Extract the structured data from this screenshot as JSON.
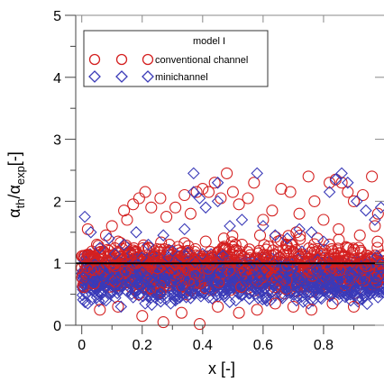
{
  "chart_data": {
    "type": "scatter",
    "title": "",
    "xlabel": "x [-]",
    "ylabel_parts": [
      "α",
      "th",
      "/α",
      "exp",
      "[-]"
    ],
    "xlim": [
      -0.02,
      1.0
    ],
    "ylim": [
      0,
      5
    ],
    "x_ticks": [
      "0",
      "0.2",
      "0.4",
      "0.6",
      "0.8"
    ],
    "x_tick_values": [
      0,
      0.2,
      0.4,
      0.6,
      0.8
    ],
    "y_ticks": [
      "0",
      "1",
      "2",
      "3",
      "4",
      "5"
    ],
    "y_tick_values": [
      0,
      1,
      2,
      3,
      4,
      5
    ],
    "reference_line": 1,
    "legend": {
      "title": "model I",
      "placement": "top-left",
      "entries": [
        {
          "label": "conventional channel",
          "marker": "circle",
          "color": "#d42020"
        },
        {
          "label": "minichannel",
          "marker": "diamond",
          "color": "#3a3ab8"
        }
      ]
    },
    "series": [
      {
        "name": "conventional channel",
        "marker": "circle",
        "color": "#d42020",
        "points": [
          [
            0.02,
            1.55
          ],
          [
            0.05,
            1.3
          ],
          [
            0.08,
            1.45
          ],
          [
            0.1,
            1.6
          ],
          [
            0.12,
            1.35
          ],
          [
            0.14,
            1.85
          ],
          [
            0.15,
            1.7
          ],
          [
            0.17,
            1.95
          ],
          [
            0.19,
            2.05
          ],
          [
            0.21,
            2.15
          ],
          [
            0.23,
            1.9
          ],
          [
            0.26,
            2.05
          ],
          [
            0.28,
            1.75
          ],
          [
            0.31,
            1.9
          ],
          [
            0.34,
            2.1
          ],
          [
            0.36,
            1.8
          ],
          [
            0.38,
            2.15
          ],
          [
            0.4,
            2.2
          ],
          [
            0.42,
            2.15
          ],
          [
            0.44,
            2.3
          ],
          [
            0.46,
            2.05
          ],
          [
            0.48,
            2.45
          ],
          [
            0.5,
            2.15
          ],
          [
            0.52,
            1.95
          ],
          [
            0.55,
            2.05
          ],
          [
            0.57,
            2.3
          ],
          [
            0.6,
            1.7
          ],
          [
            0.63,
            1.85
          ],
          [
            0.66,
            2.2
          ],
          [
            0.69,
            2.15
          ],
          [
            0.72,
            1.8
          ],
          [
            0.75,
            2.4
          ],
          [
            0.77,
            2.0
          ],
          [
            0.8,
            1.7
          ],
          [
            0.82,
            2.3
          ],
          [
            0.84,
            2.35
          ],
          [
            0.86,
            2.3
          ],
          [
            0.88,
            2.15
          ],
          [
            0.9,
            2.0
          ],
          [
            0.93,
            2.1
          ],
          [
            0.96,
            2.4
          ],
          [
            0.98,
            1.8
          ],
          [
            0.06,
            0.25
          ],
          [
            0.12,
            0.3
          ],
          [
            0.2,
            0.15
          ],
          [
            0.27,
            0.05
          ],
          [
            0.33,
            0.2
          ],
          [
            0.39,
            0.02
          ],
          [
            0.45,
            0.3
          ],
          [
            0.52,
            0.2
          ],
          [
            0.58,
            0.25
          ],
          [
            0.64,
            0.35
          ],
          [
            0.7,
            0.3
          ],
          [
            0.76,
            0.25
          ],
          [
            0.83,
            0.35
          ],
          [
            0.9,
            0.3
          ],
          [
            0.04,
            1.1
          ],
          [
            0.09,
            1.2
          ],
          [
            0.16,
            1.15
          ],
          [
            0.22,
            1.25
          ],
          [
            0.29,
            1.3
          ],
          [
            0.35,
            1.2
          ],
          [
            0.41,
            1.35
          ],
          [
            0.47,
            1.4
          ],
          [
            0.53,
            1.3
          ],
          [
            0.59,
            1.45
          ],
          [
            0.65,
            1.35
          ],
          [
            0.71,
            1.5
          ],
          [
            0.78,
            1.4
          ],
          [
            0.85,
            1.55
          ],
          [
            0.92,
            1.45
          ],
          [
            0.97,
            1.6
          ],
          [
            0.03,
            0.9
          ],
          [
            0.11,
            0.95
          ],
          [
            0.18,
            1.0
          ],
          [
            0.25,
            0.92
          ],
          [
            0.32,
            1.05
          ],
          [
            0.37,
            1.0
          ],
          [
            0.43,
            0.98
          ],
          [
            0.49,
            1.02
          ],
          [
            0.56,
            0.97
          ],
          [
            0.62,
            1.05
          ],
          [
            0.68,
            0.96
          ],
          [
            0.74,
            1.03
          ],
          [
            0.81,
            0.99
          ],
          [
            0.87,
            1.04
          ],
          [
            0.94,
            0.95
          ],
          [
            0.99,
            1.0
          ]
        ]
      },
      {
        "name": "minichannel",
        "marker": "diamond",
        "color": "#3a3ab8",
        "points": [
          [
            0.01,
            1.75
          ],
          [
            0.03,
            1.5
          ],
          [
            0.06,
            1.25
          ],
          [
            0.09,
            1.4
          ],
          [
            0.11,
            1.15
          ],
          [
            0.14,
            1.3
          ],
          [
            0.18,
            1.5
          ],
          [
            0.22,
            1.3
          ],
          [
            0.27,
            1.45
          ],
          [
            0.3,
            1.2
          ],
          [
            0.34,
            1.55
          ],
          [
            0.37,
            2.15
          ],
          [
            0.39,
            2.05
          ],
          [
            0.41,
            1.9
          ],
          [
            0.45,
            2.0
          ],
          [
            0.49,
            1.6
          ],
          [
            0.53,
            1.7
          ],
          [
            0.58,
            2.45
          ],
          [
            0.6,
            1.6
          ],
          [
            0.64,
            1.45
          ],
          [
            0.68,
            1.4
          ],
          [
            0.72,
            1.55
          ],
          [
            0.76,
            1.5
          ],
          [
            0.8,
            1.35
          ],
          [
            0.82,
            2.15
          ],
          [
            0.84,
            2.35
          ],
          [
            0.86,
            2.45
          ],
          [
            0.88,
            2.3
          ],
          [
            0.91,
            2.0
          ],
          [
            0.94,
            1.85
          ],
          [
            0.97,
            1.7
          ],
          [
            0.99,
            1.9
          ],
          [
            0.37,
            2.45
          ],
          [
            0.45,
            2.3
          ],
          [
            0.02,
            0.35
          ],
          [
            0.05,
            0.45
          ],
          [
            0.08,
            0.4
          ],
          [
            0.13,
            0.3
          ],
          [
            0.17,
            0.45
          ],
          [
            0.21,
            0.35
          ],
          [
            0.26,
            0.5
          ],
          [
            0.31,
            0.4
          ],
          [
            0.36,
            0.55
          ],
          [
            0.42,
            0.45
          ],
          [
            0.47,
            0.5
          ],
          [
            0.51,
            0.4
          ],
          [
            0.56,
            0.55
          ],
          [
            0.61,
            0.45
          ],
          [
            0.66,
            0.5
          ],
          [
            0.71,
            0.4
          ],
          [
            0.75,
            0.55
          ],
          [
            0.79,
            0.45
          ],
          [
            0.83,
            0.5
          ],
          [
            0.89,
            0.4
          ],
          [
            0.93,
            0.55
          ],
          [
            0.98,
            0.45
          ],
          [
            0.04,
            0.7
          ],
          [
            0.1,
            0.75
          ],
          [
            0.15,
            0.65
          ],
          [
            0.19,
            0.8
          ],
          [
            0.24,
            0.7
          ],
          [
            0.29,
            0.85
          ],
          [
            0.33,
            0.75
          ],
          [
            0.38,
            0.8
          ],
          [
            0.43,
            0.7
          ],
          [
            0.48,
            0.85
          ],
          [
            0.54,
            0.75
          ],
          [
            0.59,
            0.8
          ],
          [
            0.63,
            0.7
          ],
          [
            0.69,
            0.85
          ],
          [
            0.73,
            0.75
          ],
          [
            0.78,
            0.8
          ],
          [
            0.84,
            0.7
          ],
          [
            0.9,
            0.85
          ],
          [
            0.95,
            0.75
          ],
          [
            0.99,
            0.8
          ]
        ]
      }
    ]
  }
}
